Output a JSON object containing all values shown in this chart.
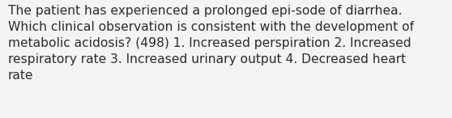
{
  "lines": [
    "The patient has experienced a prolonged epi-sode of diarrhea.",
    "Which clinical observation is consistent with the development of",
    "metabolic acidosis? (498) 1. Increased perspiration 2. Increased",
    "respiratory rate 3. Increased urinary output 4. Decreased heart",
    "rate"
  ],
  "background_color": "#f4f4f4",
  "text_color": "#2b2b2b",
  "font_size": 11.2,
  "fig_width": 5.58,
  "fig_height": 1.46,
  "dpi": 100
}
